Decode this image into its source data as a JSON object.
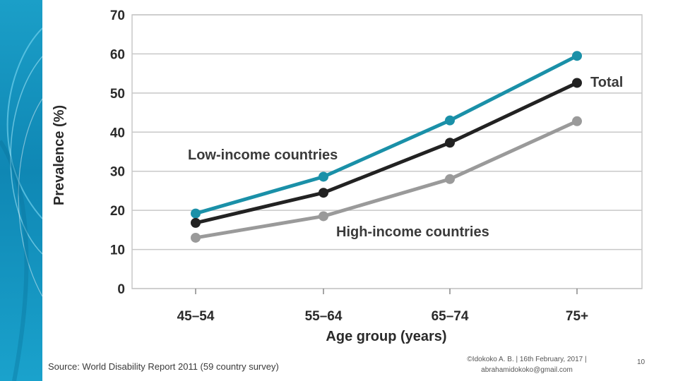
{
  "footer": {
    "source": "Source: World Disability Report 2011  (59 country survey)",
    "credit_line1": "©Idokoko A. B. | 16th February, 2017 |",
    "credit_line2": "abrahamidokoko@gmail.com",
    "page_number": "10"
  },
  "colors": {
    "side_band": "#1394c2",
    "low_income": "#1a90a8",
    "total": "#222222",
    "high_income": "#9a9a9a",
    "grid": "#c8c8c8"
  },
  "chart_data": {
    "type": "line",
    "xlabel": "Age group (years)",
    "ylabel": "Prevalence (%)",
    "categories": [
      "45–54",
      "55–64",
      "65–74",
      "75+"
    ],
    "ylim": [
      0,
      70
    ],
    "yticks": [
      "0",
      "10",
      "20",
      "30",
      "40",
      "50",
      "60",
      "70"
    ],
    "grid": true,
    "series": [
      {
        "name": "Low-income countries",
        "values": [
          19.2,
          28.6,
          43.0,
          59.5
        ]
      },
      {
        "name": "Total",
        "values": [
          16.8,
          24.5,
          37.3,
          52.6
        ]
      },
      {
        "name": "High-income countries",
        "values": [
          13.0,
          18.5,
          28.0,
          42.8
        ]
      }
    ]
  }
}
